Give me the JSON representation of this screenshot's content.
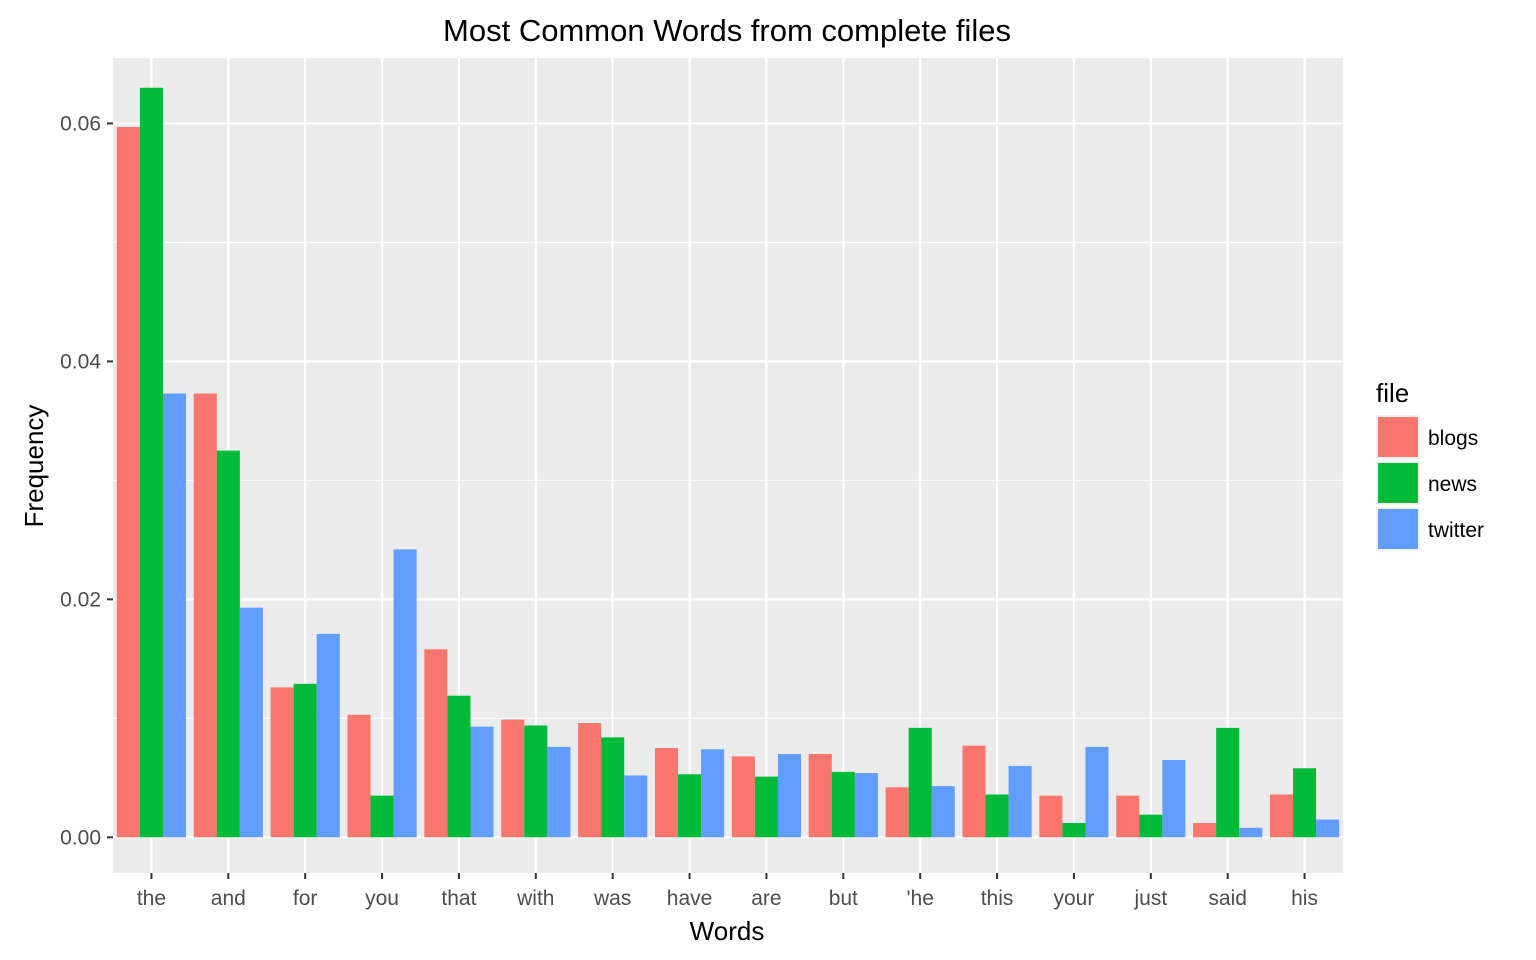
{
  "chart_data": {
    "type": "bar",
    "title": "Most Common Words from complete files",
    "xlabel": "Words",
    "ylabel": "Frequency",
    "ylim": [
      -0.003,
      0.0655
    ],
    "yticks": [
      0.0,
      0.02,
      0.04,
      0.06
    ],
    "ytick_labels": [
      "0.00",
      "0.02",
      "0.04",
      "0.06"
    ],
    "grid": true,
    "legend": {
      "title": "file",
      "position": "right"
    },
    "categories": [
      "the",
      "and",
      "for",
      "you",
      "that",
      "with",
      "was",
      "have",
      "are",
      "but",
      "'he",
      "this",
      "your",
      "just",
      "said",
      "his"
    ],
    "series": [
      {
        "name": "blogs",
        "color": "#F8766D",
        "values": [
          0.0597,
          0.0373,
          0.0126,
          0.0103,
          0.0158,
          0.0099,
          0.0096,
          0.0075,
          0.0068,
          0.007,
          0.0042,
          0.0077,
          0.0035,
          0.0035,
          0.0012,
          0.0036
        ]
      },
      {
        "name": "news",
        "color": "#00BA38",
        "values": [
          0.063,
          0.0325,
          0.0129,
          0.0035,
          0.0119,
          0.0094,
          0.0084,
          0.0053,
          0.0051,
          0.0055,
          0.0092,
          0.0036,
          0.0012,
          0.0019,
          0.0092,
          0.0058
        ]
      },
      {
        "name": "twitter",
        "color": "#619CFF",
        "values": [
          0.0373,
          0.0193,
          0.0171,
          0.0242,
          0.0093,
          0.0076,
          0.0052,
          0.0074,
          0.007,
          0.0054,
          0.0043,
          0.006,
          0.0076,
          0.0065,
          0.0008,
          0.0015
        ]
      }
    ]
  }
}
